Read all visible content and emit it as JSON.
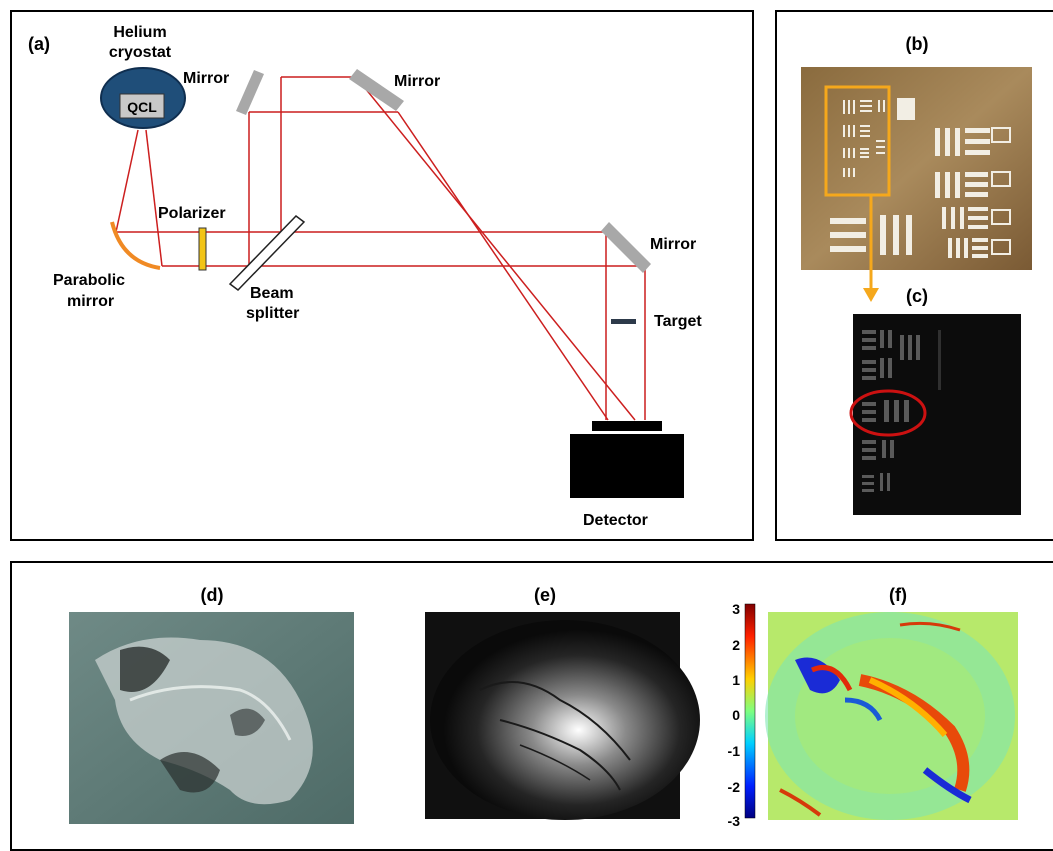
{
  "panel_a": {
    "label": "(a)",
    "cryostat_label_line1": "Helium",
    "cryostat_label_line2": "cryostat",
    "qcl_label": "QCL",
    "mirror_label_1": "Mirror",
    "mirror_label_2": "Mirror",
    "mirror_label_3": "Mirror",
    "polarizer_label": "Polarizer",
    "parabolic_label_line1": "Parabolic",
    "parabolic_label_line2": "mirror",
    "beam_splitter_line1": "Beam",
    "beam_splitter_line2": "splitter",
    "target_label": "Target",
    "detector_label": "Detector"
  },
  "panel_b": {
    "label": "(b)"
  },
  "panel_c": {
    "label": "(c)"
  },
  "panel_d": {
    "label": "(d)"
  },
  "panel_e": {
    "label": "(e)"
  },
  "panel_f": {
    "label": "(f)",
    "colorbar_ticks": [
      "3",
      "2",
      "1",
      "0",
      "-1",
      "-2",
      "-3"
    ]
  },
  "colors": {
    "beam": "#cc1f1f",
    "mirror": "#a8a8a8",
    "cryostat": "#1f4e79",
    "parabolic": "#f08a24",
    "polarizer": "#f2c417",
    "arrow": "#f5a81c",
    "circle": "#cc1111"
  }
}
